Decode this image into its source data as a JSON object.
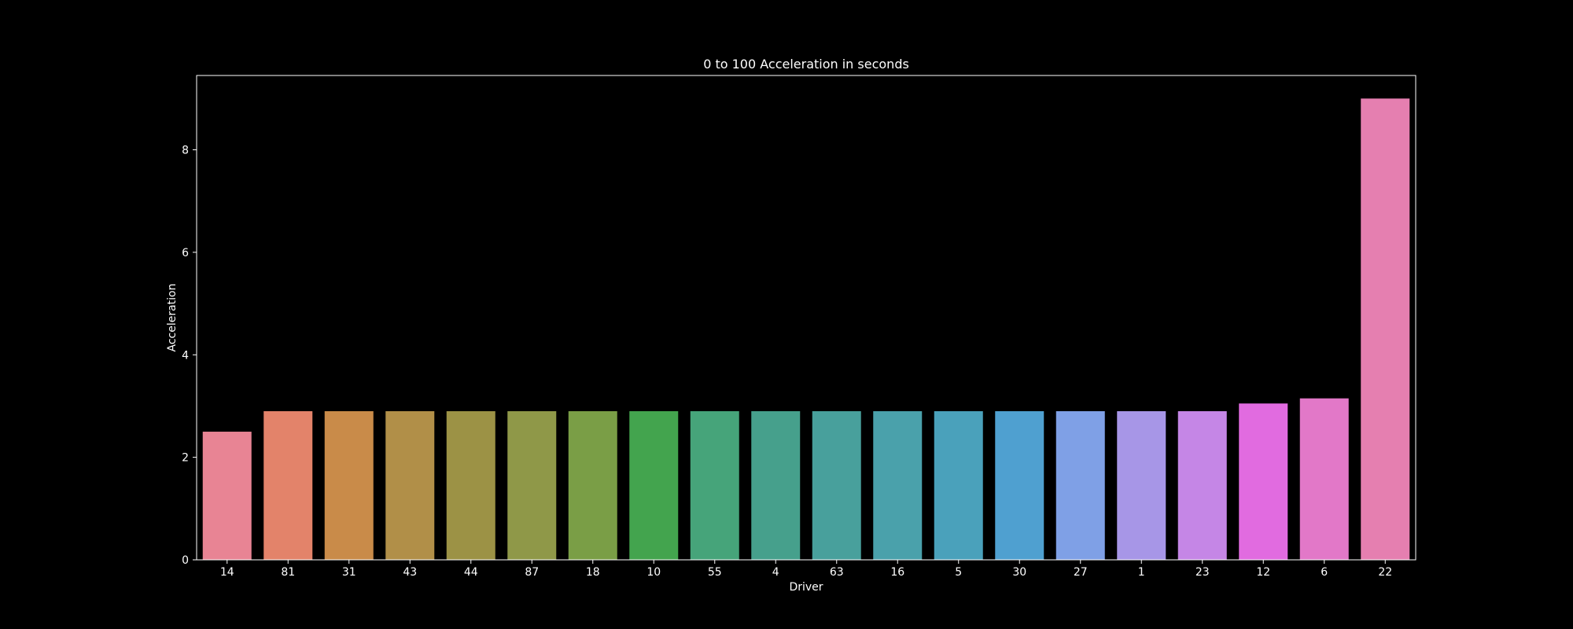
{
  "chart_data": {
    "type": "bar",
    "title": "0 to 100 Acceleration in seconds",
    "xlabel": "Driver",
    "ylabel": "Acceleration",
    "categories": [
      "14",
      "81",
      "31",
      "43",
      "44",
      "87",
      "18",
      "10",
      "55",
      "4",
      "63",
      "16",
      "5",
      "30",
      "27",
      "1",
      "23",
      "12",
      "6",
      "22"
    ],
    "values": [
      2.5,
      2.9,
      2.9,
      2.9,
      2.9,
      2.9,
      2.9,
      2.9,
      2.9,
      2.9,
      2.9,
      2.9,
      2.9,
      2.9,
      2.9,
      2.9,
      2.9,
      3.05,
      3.15,
      9.0
    ],
    "colors": [
      "#e88494",
      "#e3836a",
      "#c98b49",
      "#b18f48",
      "#9c9245",
      "#8f9848",
      "#7a9e46",
      "#43a44e",
      "#46a47a",
      "#46a08c",
      "#48a09c",
      "#4aa1ab",
      "#4aa1bb",
      "#4fa0d0",
      "#7fa0e6",
      "#a796e7",
      "#c586e6",
      "#e16be0",
      "#e278c8",
      "#e57fb0"
    ],
    "ylim": [
      0,
      9.45
    ],
    "yticks": [
      0,
      2,
      4,
      6,
      8
    ],
    "grid": false,
    "legend": "none"
  }
}
